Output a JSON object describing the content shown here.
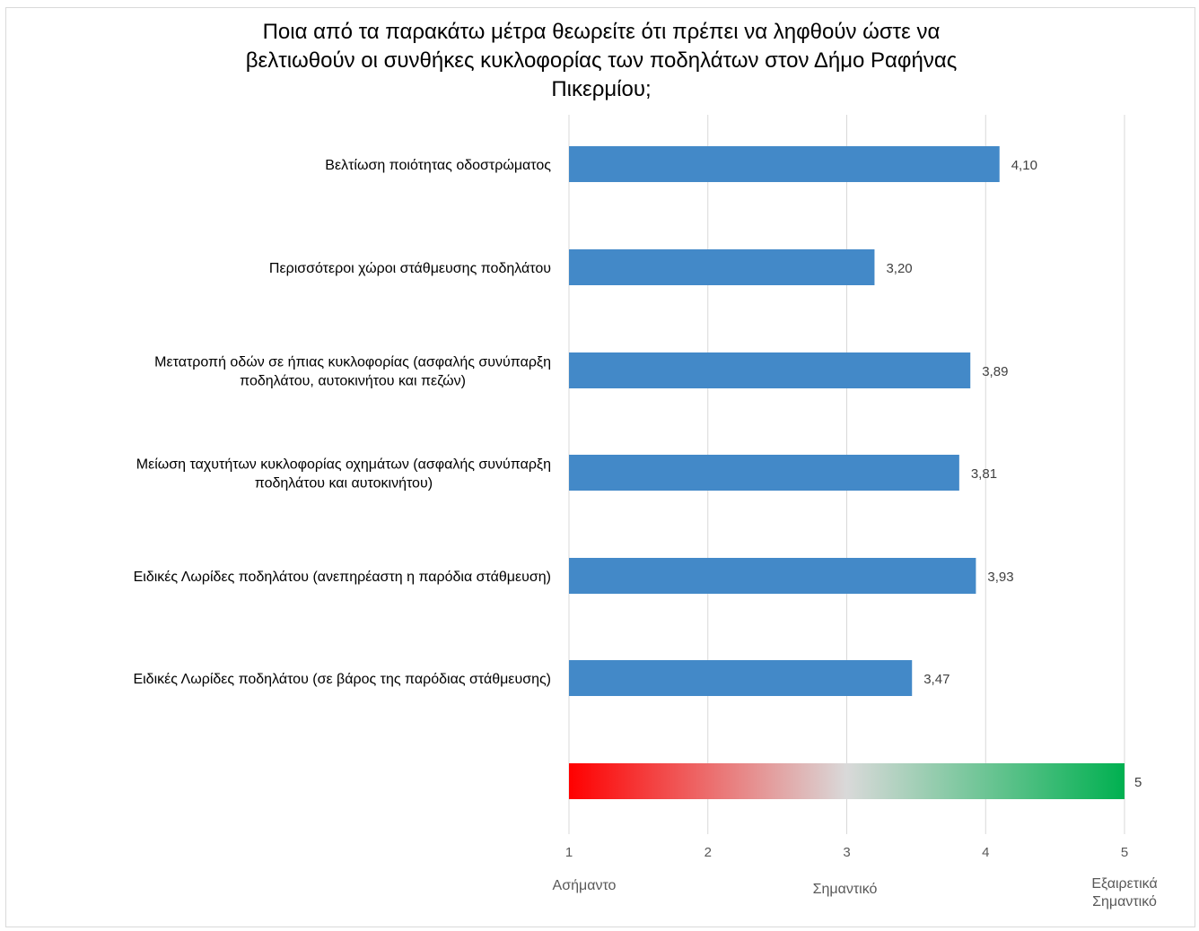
{
  "chart_data": {
    "type": "bar",
    "orientation": "horizontal",
    "title": "Ποια από τα παρακάτω μέτρα θεωρείτε ότι πρέπει να ληφθούν ώστε να βελτιωθούν οι συνθήκες κυκλοφορίας των ποδηλάτων στον Δήμο Ραφήνας Πικερμίου;",
    "title_lines": [
      "Ποια από τα παρακάτω μέτρα θεωρείτε ότι πρέπει να ληφθούν ώστε να",
      "βελτιωθούν οι συνθήκες κυκλοφορίας των ποδηλάτων στον Δήμο Ραφήνας",
      "Πικερμίου;"
    ],
    "categories": [
      [
        "Βελτίωση ποιότητας οδοστρώματος"
      ],
      [
        "Περισσότεροι χώροι στάθμευσης ποδηλάτου"
      ],
      [
        "Μετατροπή οδών σε ήπιας κυκλοφορίας (ασφαλής συνύπαρξη",
        "ποδηλάτου, αυτοκινήτου και πεζών)"
      ],
      [
        "Μείωση ταχυτήτων κυκλοφορίας οχημάτων (ασφαλής συνύπαρξη",
        "ποδηλάτου και αυτοκινήτου)"
      ],
      [
        "Ειδικές Λωρίδες ποδηλάτου (ανεπηρέαστη η παρόδια στάθμευση)"
      ],
      [
        "Ειδικές Λωρίδες ποδηλάτου (σε βάρος της παρόδιας στάθμευσης)"
      ]
    ],
    "values": [
      4.1,
      3.2,
      3.89,
      3.81,
      3.93,
      3.47
    ],
    "value_labels": [
      "4,10",
      "3,20",
      "3,89",
      "3,81",
      "3,93",
      "3,47"
    ],
    "bar_color": "#4389c8",
    "scale_bar": {
      "value": 5,
      "value_label": "5",
      "gradient": [
        "#ff0000",
        "#d9d9d9",
        "#00b050"
      ]
    },
    "xlim": [
      1,
      5
    ],
    "xticks": [
      "1",
      "2",
      "3",
      "4",
      "5"
    ],
    "grid": true,
    "scale_labels": [
      {
        "at": 1,
        "lines": [
          "Ασήμαντο"
        ]
      },
      {
        "at": 3,
        "lines": [
          "Σημαντικό"
        ]
      },
      {
        "at": 5,
        "lines": [
          "Εξαιρετικά",
          "Σημαντικό"
        ]
      }
    ]
  }
}
